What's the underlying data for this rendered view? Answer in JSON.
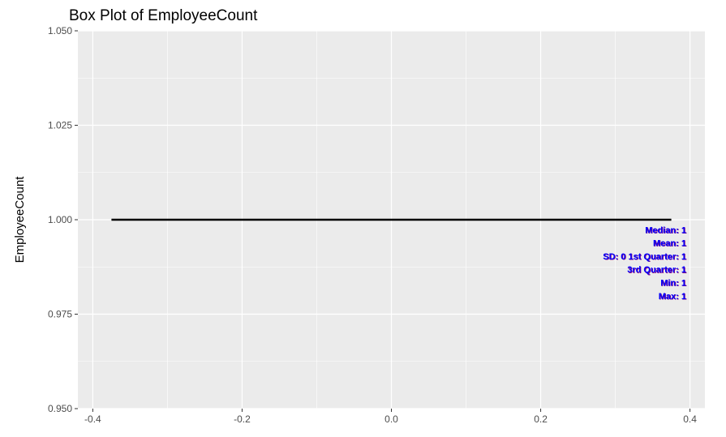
{
  "chart_data": {
    "type": "box",
    "title": "Box Plot of EmployeeCount",
    "xlabel": "",
    "ylabel": "EmployeeCount",
    "xlim": [
      -0.42,
      0.42
    ],
    "ylim": [
      0.95,
      1.05
    ],
    "x_ticks": [
      -0.4,
      -0.2,
      0.0,
      0.2,
      0.4
    ],
    "x_tick_labels": [
      "-0.4",
      "-0.2",
      "0.0",
      "0.2",
      "0.4"
    ],
    "y_ticks": [
      0.95,
      0.975,
      1.0,
      1.025,
      1.05
    ],
    "y_tick_labels": [
      "0.950",
      "0.975",
      "1.000",
      "1.025",
      "1.050"
    ],
    "box": {
      "x_start": -0.375,
      "x_end": 0.375,
      "min": 1,
      "q1": 1,
      "median": 1,
      "q3": 1,
      "max": 1
    },
    "grid": true,
    "annotations": [
      {
        "text": "Median: 1",
        "y": 0.9965
      },
      {
        "text": "Mean: 1",
        "y": 0.993
      },
      {
        "text": "SD: 0 1st Quarter: 1",
        "y": 0.9895
      },
      {
        "text": "3rd Quarter: 1",
        "y": 0.986
      },
      {
        "text": "Min: 1",
        "y": 0.9825
      },
      {
        "text": "Max: 1",
        "y": 0.979
      }
    ],
    "annotation_x": 0.395,
    "annotation_color": "#0000ff",
    "annotation_shadow_color": "#800080",
    "panel_color": "#ebebeb",
    "grid_color": "#ffffff",
    "box_color": "#000000"
  }
}
